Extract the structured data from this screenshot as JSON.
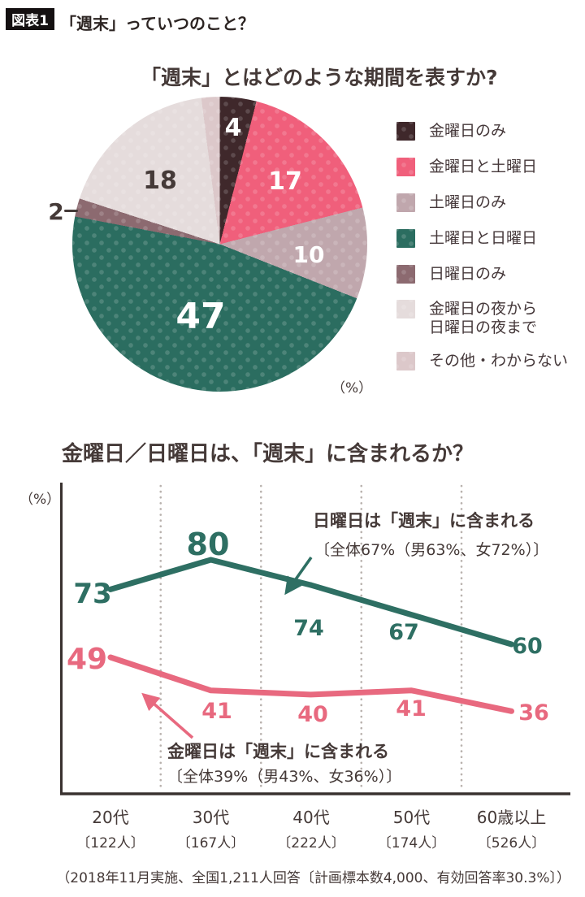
{
  "header": {
    "badge": "図表1",
    "title": "「週末」っていつのこと？"
  },
  "pie_section": {
    "title": "「週末」とはどのような期間を表すか?",
    "unit_label": "（%）"
  },
  "line_section": {
    "title": "金曜日／日曜日は、「週末」に含まれるか？",
    "unit_label": "（%）"
  },
  "colors": {
    "teal": "#2e6f63",
    "pink": "#e8697f",
    "dark_text": "#453a38",
    "axis": "#3a3230",
    "grid_dots": "#b9b2ae",
    "badge_bg": "#141011"
  },
  "chart_data": [
    {
      "type": "pie",
      "title": "「週末」とはどのような期間を表すか?",
      "unit": "%",
      "start_angle_deg": 0,
      "direction": "clockwise",
      "legend_position": "right",
      "slices": [
        {
          "label": "金曜日のみ",
          "value": 4,
          "color": "#3f282b"
        },
        {
          "label": "金曜日と土曜日",
          "value": 17,
          "color": "#f05f7b"
        },
        {
          "label": "土曜日のみ",
          "value": 10,
          "color": "#c0a7ad"
        },
        {
          "label": "土曜日と日曜日",
          "value": 47,
          "color": "#2b6d60"
        },
        {
          "label": "日曜日のみ",
          "value": 2,
          "color": "#8c6a70"
        },
        {
          "label": "金曜日の夜から日曜日の夜まで",
          "value": 18,
          "color": "#e5dcdc"
        },
        {
          "label": "その他・わからない",
          "value": 2,
          "color": "#dcc8ca"
        }
      ]
    },
    {
      "type": "line",
      "title": "金曜日／日曜日は、「週末」に含まれるか？",
      "unit": "%",
      "categories": [
        "20代",
        "30代",
        "40代",
        "50代",
        "60歳以上"
      ],
      "category_counts": [
        "〔122人〕",
        "〔167人〕",
        "〔222人〕",
        "〔174人〕",
        "〔526人〕"
      ],
      "grid": "dotted-vertical-between-categories",
      "series": [
        {
          "name": "日曜日は「週末」に含まれる",
          "annotation": "〔全体67%（男63%、女72%）〕",
          "color": "#2e6f63",
          "values": [
            73,
            80,
            74,
            67,
            60
          ]
        },
        {
          "name": "金曜日は「週末」に含まれる",
          "annotation": "〔全体39%（男43%、女36%）〕",
          "color": "#e8697f",
          "values": [
            49,
            41,
            40,
            41,
            36
          ]
        }
      ]
    }
  ],
  "legend": {
    "items": [
      {
        "label": "金曜日のみ",
        "color": "#3f282b"
      },
      {
        "label": "金曜日と土曜日",
        "color": "#f05f7b"
      },
      {
        "label": "土曜日のみ",
        "color": "#c0a7ad"
      },
      {
        "label": "土曜日と日曜日",
        "color": "#2b6d60"
      },
      {
        "label": "日曜日のみ",
        "color": "#8c6a70"
      },
      {
        "label": "金曜日の夜から\n日曜日の夜まで",
        "color": "#e5dcdc"
      },
      {
        "label": "その他・わからない",
        "color": "#dcc8ca"
      }
    ]
  },
  "footer": {
    "note": "（2018年11月実施、全国1,211人回答〔計画標本数4,000、有効回答率30.3%〕）"
  }
}
